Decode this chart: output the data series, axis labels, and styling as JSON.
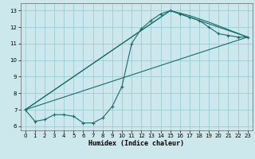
{
  "xlabel": "Humidex (Indice chaleur)",
  "bg_color": "#cce8ec",
  "grid_color": "#99ccd4",
  "line_color": "#1a6b6b",
  "xlim": [
    -0.5,
    23.5
  ],
  "ylim": [
    5.75,
    13.45
  ],
  "xticks": [
    0,
    1,
    2,
    3,
    4,
    5,
    6,
    7,
    8,
    9,
    10,
    11,
    12,
    13,
    14,
    15,
    16,
    17,
    18,
    19,
    20,
    21,
    22,
    23
  ],
  "yticks": [
    6,
    7,
    8,
    9,
    10,
    11,
    12,
    13
  ],
  "line1_x": [
    0,
    1,
    2,
    3,
    4,
    5,
    6,
    7,
    8,
    9,
    10,
    11,
    12,
    13,
    14,
    15,
    16,
    17,
    18,
    19,
    20,
    21,
    22,
    23
  ],
  "line1_y": [
    7.0,
    6.3,
    6.4,
    6.7,
    6.7,
    6.6,
    6.2,
    6.2,
    6.5,
    7.2,
    8.4,
    11.0,
    11.9,
    12.4,
    12.8,
    13.0,
    12.8,
    12.6,
    12.4,
    12.0,
    11.6,
    11.5,
    11.4,
    11.4
  ],
  "line2_x": [
    0,
    23
  ],
  "line2_y": [
    7.0,
    11.4
  ],
  "line3_x": [
    0,
    15,
    18,
    20,
    23
  ],
  "line3_y": [
    7.0,
    13.0,
    12.4,
    12.0,
    11.4
  ],
  "line4_x": [
    0,
    15,
    17,
    19,
    23
  ],
  "line4_y": [
    7.0,
    13.0,
    12.7,
    12.3,
    11.4
  ]
}
